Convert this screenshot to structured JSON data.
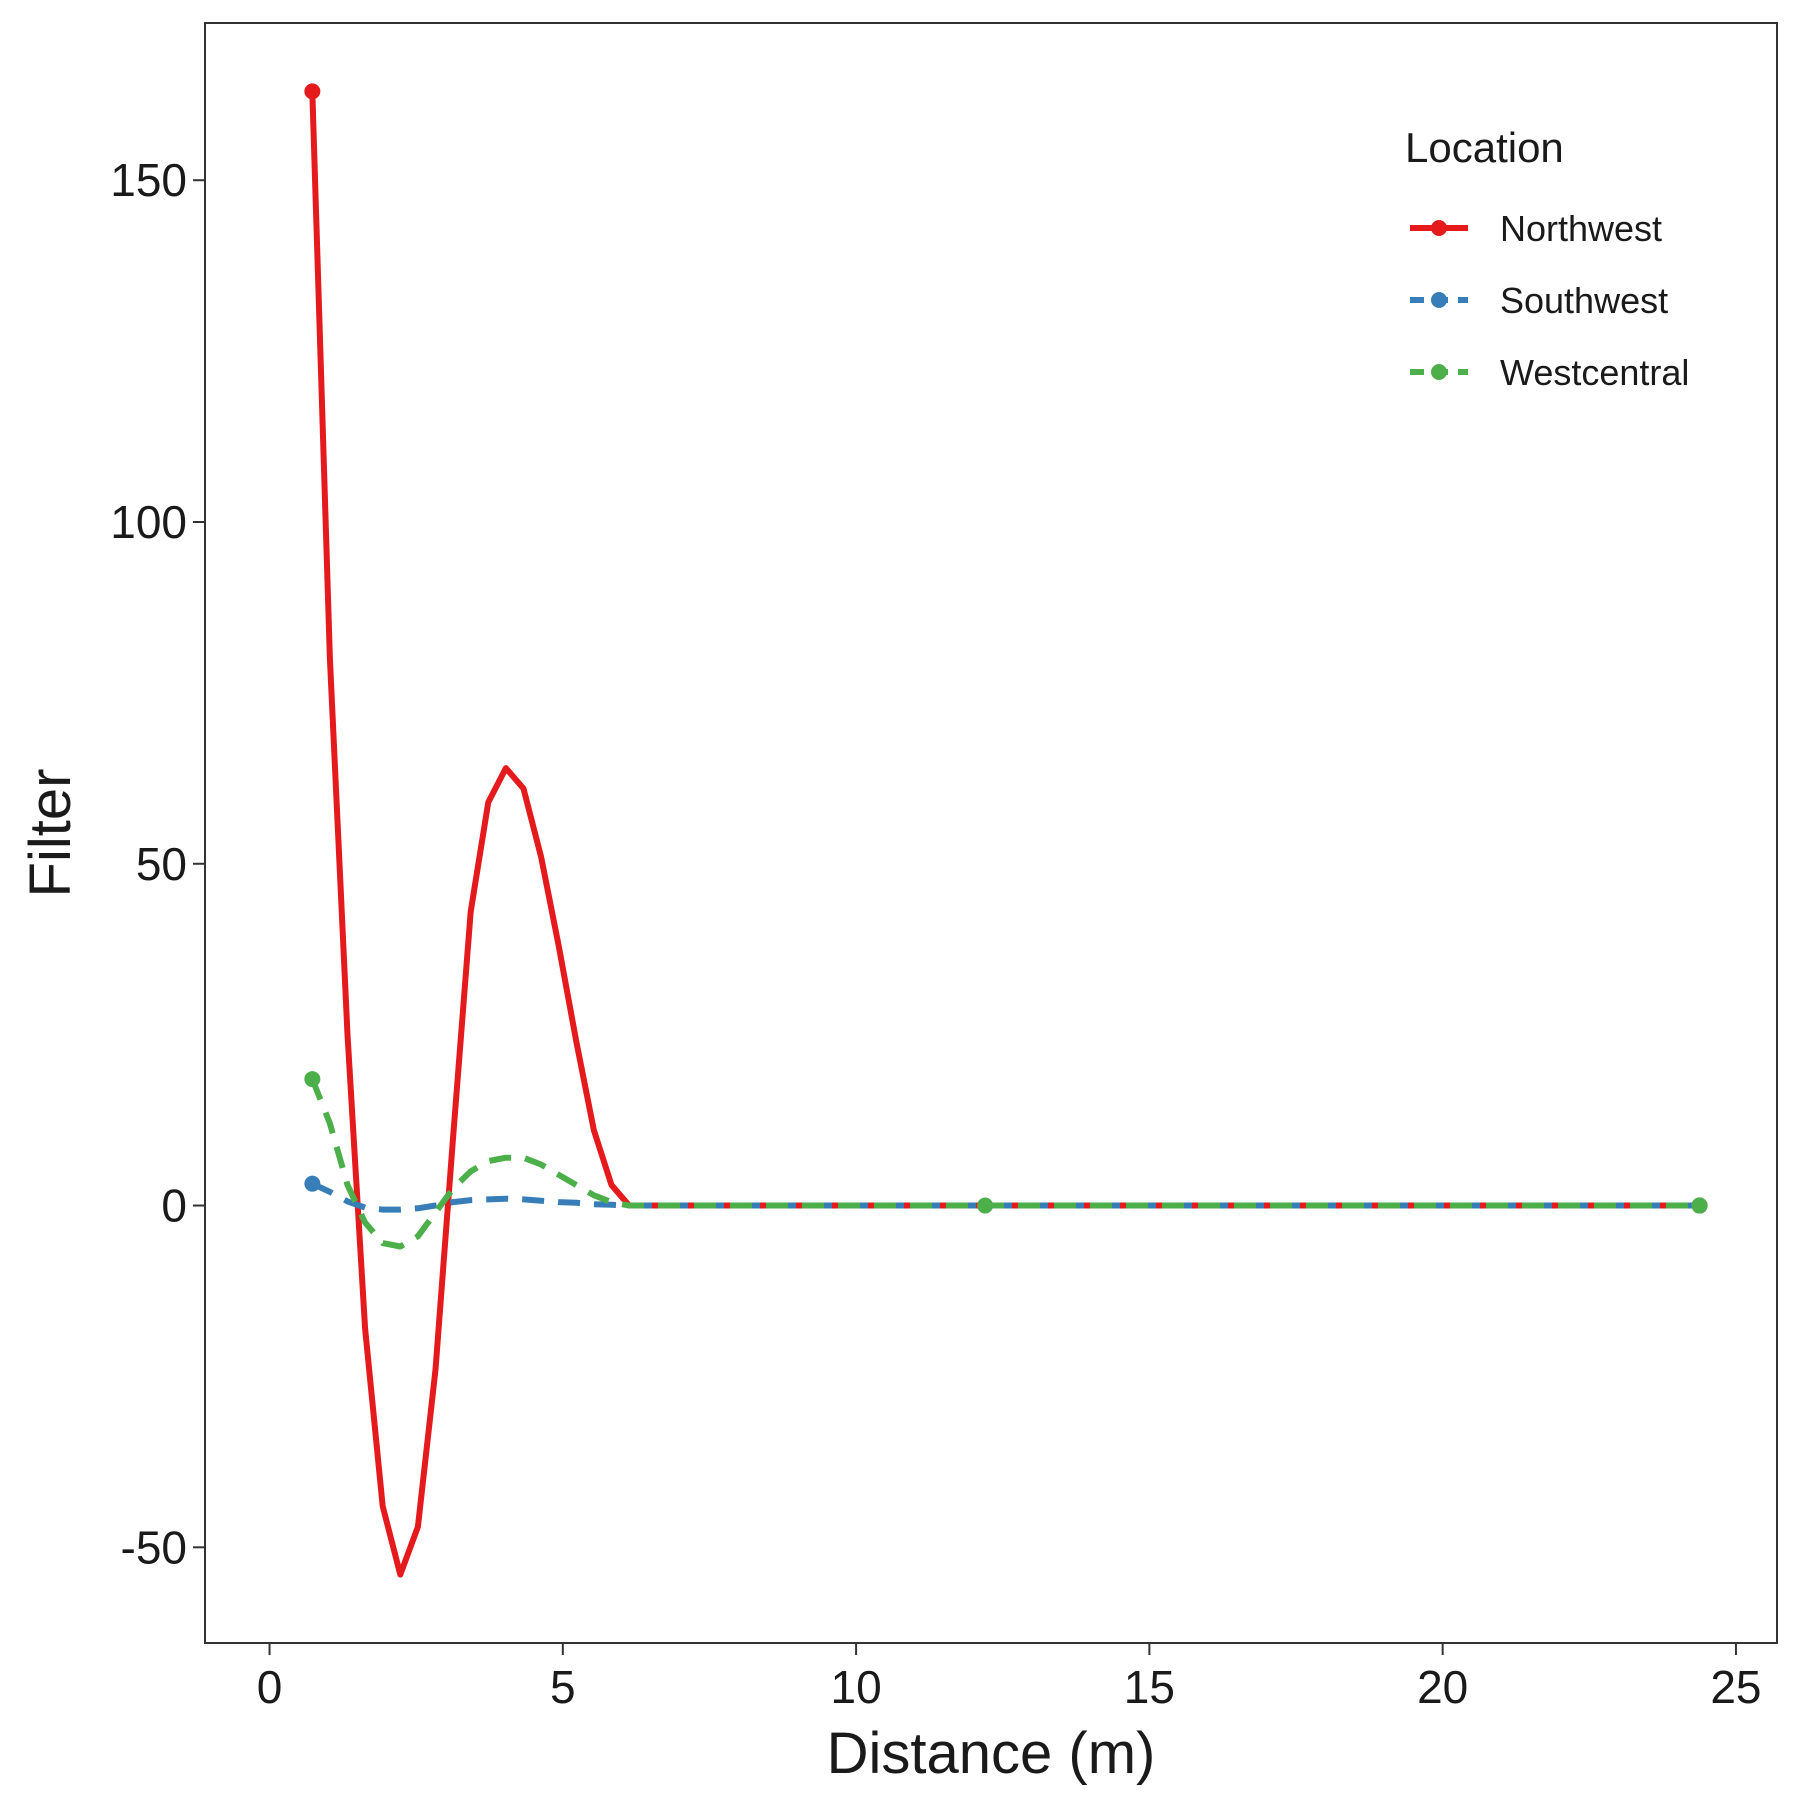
{
  "chart_data": {
    "type": "line",
    "title": "",
    "xlabel": "Distance (m)",
    "ylabel": "Filter",
    "xlim": [
      -1.1,
      25.7
    ],
    "ylim": [
      -64,
      173
    ],
    "x_ticks": [
      0,
      5,
      10,
      15,
      20,
      25
    ],
    "y_ticks": [
      -50,
      0,
      50,
      100,
      150
    ],
    "grid": false,
    "legend": {
      "title": "Location",
      "position": "top-right"
    },
    "series": [
      {
        "name": "Northwest",
        "color": "#E41A1C",
        "dash": "solid",
        "x": [
          0.73,
          1.03,
          1.33,
          1.63,
          1.93,
          2.23,
          2.53,
          2.83,
          3.13,
          3.43,
          3.73,
          4.03,
          4.33,
          4.63,
          4.93,
          5.23,
          5.53,
          5.83,
          6.13,
          7,
          8,
          9,
          10,
          11,
          12,
          13,
          14,
          15,
          16,
          17,
          18,
          19,
          20,
          21,
          22,
          23,
          24,
          24.38
        ],
        "y": [
          163,
          80,
          25,
          -18,
          -44,
          -54,
          -47,
          -24,
          10,
          43,
          59,
          64,
          61,
          51,
          38,
          24,
          11,
          3,
          0,
          0,
          0,
          0,
          0,
          0,
          0,
          0,
          0,
          0,
          0,
          0,
          0,
          0,
          0,
          0,
          0,
          0,
          0,
          0
        ],
        "markers_x": [
          0.73,
          24.38
        ],
        "markers_y": [
          163,
          0
        ]
      },
      {
        "name": "Southwest",
        "color": "#377EB8",
        "dash": "dashed",
        "x": [
          0.73,
          1.03,
          1.33,
          1.63,
          1.93,
          2.23,
          2.53,
          2.83,
          3.13,
          3.43,
          3.73,
          4.03,
          4.33,
          4.63,
          4.93,
          5.23,
          5.53,
          5.83,
          6.13,
          8,
          10,
          12,
          14,
          16,
          18,
          20,
          22,
          24.38
        ],
        "y": [
          3.2,
          2.0,
          0.6,
          -0.3,
          -0.6,
          -0.6,
          -0.4,
          0.0,
          0.5,
          0.8,
          0.9,
          1.0,
          0.9,
          0.7,
          0.5,
          0.4,
          0.2,
          0.1,
          0,
          0,
          0,
          0,
          0,
          0,
          0,
          0,
          0,
          0
        ],
        "markers_x": [
          0.73,
          24.38
        ],
        "markers_y": [
          3.2,
          0
        ]
      },
      {
        "name": "Westcentral",
        "color": "#4DAF4A",
        "dash": "dashed",
        "x": [
          0.73,
          1.03,
          1.33,
          1.63,
          1.93,
          2.23,
          2.53,
          2.83,
          3.13,
          3.43,
          3.73,
          4.03,
          4.33,
          4.63,
          4.93,
          5.23,
          5.53,
          5.83,
          6.13,
          8,
          10,
          12.2,
          14,
          16,
          18,
          20,
          22,
          24.38
        ],
        "y": [
          18.5,
          12,
          3,
          -2.5,
          -5.5,
          -6,
          -4.5,
          -1,
          2.5,
          5,
          6.5,
          7,
          7,
          6,
          4.5,
          3,
          1.5,
          0.5,
          0,
          0,
          0,
          0,
          0,
          0,
          0,
          0,
          0,
          0
        ],
        "markers_x": [
          0.73,
          12.2,
          24.38
        ],
        "markers_y": [
          18.5,
          0,
          0
        ]
      }
    ]
  }
}
